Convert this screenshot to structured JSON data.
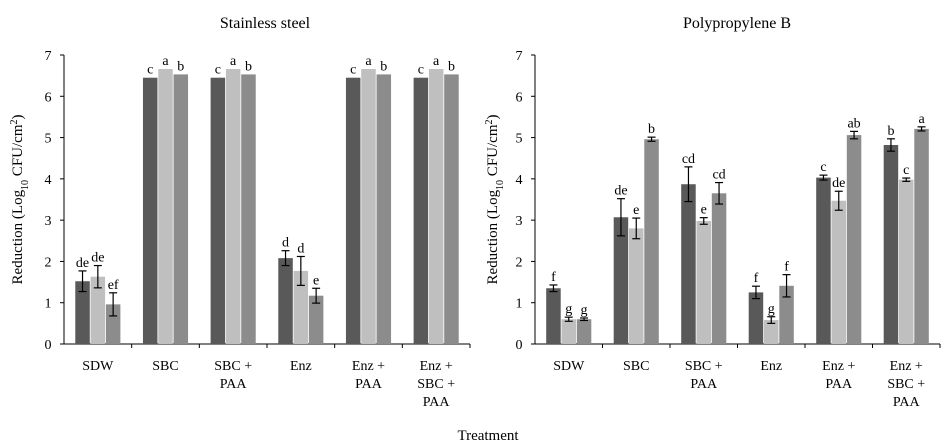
{
  "chart_data": [
    {
      "type": "bar",
      "title": "Stainless steel",
      "xlabel": "Treatment",
      "ylabel_parts": [
        "Reduction (Log",
        "10",
        " CFU/cm",
        "2",
        ")"
      ],
      "ylim": [
        0,
        7
      ],
      "yticks": [
        "0",
        "1",
        "2",
        "3",
        "4",
        "5",
        "6",
        "7"
      ],
      "categories": [
        [
          "SDW"
        ],
        [
          "SBC"
        ],
        [
          "SBC +",
          "PAA"
        ],
        [
          "Enz"
        ],
        [
          "Enz +",
          "PAA"
        ],
        [
          "Enz +",
          "SBC +",
          "PAA"
        ]
      ],
      "series_colors": [
        "#595959",
        "#bfbfbf",
        "#8c8c8c"
      ],
      "series": [
        {
          "values": [
            1.52,
            6.45,
            6.45,
            2.08,
            6.45,
            6.45
          ],
          "errors": [
            0.25,
            0,
            0,
            0.18,
            0,
            0
          ],
          "labels": [
            "de",
            "c",
            "c",
            "d",
            "c",
            "c"
          ]
        },
        {
          "values": [
            1.63,
            6.66,
            6.66,
            1.77,
            6.66,
            6.66
          ],
          "errors": [
            0.27,
            0,
            0,
            0.35,
            0,
            0
          ],
          "labels": [
            "de",
            "a",
            "a",
            "d",
            "a",
            "a"
          ]
        },
        {
          "values": [
            0.96,
            6.53,
            6.53,
            1.17,
            6.53,
            6.53
          ],
          "errors": [
            0.28,
            0,
            0,
            0.18,
            0,
            0
          ],
          "labels": [
            "ef",
            "b",
            "b",
            "e",
            "b",
            "b"
          ]
        }
      ]
    },
    {
      "type": "bar",
      "title": "Polypropylene B",
      "xlabel": "Treatment",
      "ylabel_parts": [
        "Reduction (Log",
        "10",
        " CFU/cm",
        "2",
        ")"
      ],
      "ylim": [
        0,
        7
      ],
      "yticks": [
        "0",
        "1",
        "2",
        "3",
        "4",
        "5",
        "6",
        "7"
      ],
      "categories": [
        [
          "SDW"
        ],
        [
          "SBC"
        ],
        [
          "SBC +",
          "PAA"
        ],
        [
          "Enz"
        ],
        [
          "Enz +",
          "PAA"
        ],
        [
          "Enz +",
          "SBC +",
          "PAA"
        ]
      ],
      "series_colors": [
        "#595959",
        "#bfbfbf",
        "#8c8c8c"
      ],
      "series": [
        {
          "values": [
            1.35,
            3.07,
            3.87,
            1.25,
            4.03,
            4.82
          ],
          "errors": [
            0.08,
            0.45,
            0.42,
            0.15,
            0.06,
            0.15
          ],
          "labels": [
            "f",
            "de",
            "cd",
            "f",
            "c",
            "b"
          ]
        },
        {
          "values": [
            0.6,
            2.8,
            2.98,
            0.58,
            3.47,
            3.98
          ],
          "errors": [
            0.05,
            0.25,
            0.08,
            0.08,
            0.23,
            0.04
          ],
          "labels": [
            "g",
            "e",
            "e",
            "g",
            "de",
            "c"
          ]
        },
        {
          "values": [
            0.6,
            4.96,
            3.65,
            1.41,
            5.06,
            5.21
          ],
          "errors": [
            0.03,
            0.05,
            0.26,
            0.27,
            0.09,
            0.05
          ],
          "labels": [
            "g",
            "b",
            "cd",
            "f",
            "ab",
            "a"
          ]
        }
      ]
    }
  ]
}
